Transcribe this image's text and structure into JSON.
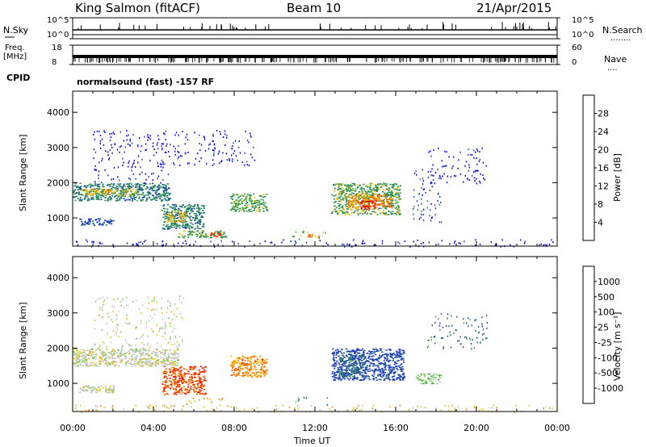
{
  "header": {
    "station": "King Salmon (fitACF)",
    "beam": "Beam 10",
    "date": "21/Apr/2015"
  },
  "strip_labels": {
    "nsky": "N.Sky",
    "nsearch": "N.Search",
    "nsearch_dots": "........",
    "freq_line1": "Freq.",
    "freq_line2": "[MHz]",
    "nave": "Nave",
    "nave_dots": "....",
    "cpid": "CPID",
    "cpid_text": "normalsound (fast) -157 RF",
    "nsky_ticks": [
      "10^5",
      "10^0"
    ],
    "nsearch_ticks": [
      "10^5",
      "10^0"
    ],
    "freq_ticks": [
      "18",
      "8"
    ],
    "nave_ticks": [
      "60",
      "0"
    ]
  },
  "colors": {
    "power": [
      "#0000ff",
      "#2040b0",
      "#208060",
      "#40a050",
      "#f0c000",
      "#f08000",
      "#ff4000",
      "#ff0000"
    ],
    "velocity": [
      "#2040c0",
      "#206080",
      "#40a040",
      "#80d060",
      "#c0c0c0",
      "#f0c000",
      "#f08000",
      "#f04000",
      "#ff0000"
    ]
  },
  "chart_data": [
    {
      "type": "heatmap",
      "panel": "power",
      "ylabel": "Slant Range [km]",
      "y_ticks": [
        1000,
        2000,
        3000,
        4000
      ],
      "ylim": [
        200,
        4600
      ],
      "xlim": [
        0,
        24
      ],
      "colorbar_label": "Power [dB]",
      "colorbar_ticks": [
        "4",
        "8",
        "12",
        "16",
        "20",
        "24",
        "28"
      ],
      "blobs": [
        {
          "t0": 0.0,
          "t1": 4.8,
          "r0": 1500,
          "r1": 2000,
          "c": 2
        },
        {
          "t0": 0.4,
          "t1": 3.2,
          "r0": 1650,
          "r1": 1850,
          "c": 4
        },
        {
          "t0": 0.3,
          "t1": 2.0,
          "r0": 800,
          "r1": 1000,
          "c": 1
        },
        {
          "t0": 4.4,
          "t1": 6.5,
          "r0": 700,
          "r1": 1400,
          "c": 2
        },
        {
          "t0": 4.6,
          "t1": 5.6,
          "r0": 900,
          "r1": 1200,
          "c": 4
        },
        {
          "t0": 5.2,
          "t1": 7.6,
          "r0": 450,
          "r1": 650,
          "c": 3
        },
        {
          "t0": 6.8,
          "t1": 7.4,
          "r0": 480,
          "r1": 600,
          "c": 6
        },
        {
          "t0": 7.8,
          "t1": 9.6,
          "r0": 1200,
          "r1": 1700,
          "c": 3
        },
        {
          "t0": 10.8,
          "t1": 12.5,
          "r0": 400,
          "r1": 650,
          "c": 3
        },
        {
          "t0": 11.6,
          "t1": 12.2,
          "r0": 450,
          "r1": 550,
          "c": 5
        },
        {
          "t0": 12.8,
          "t1": 16.2,
          "r0": 1100,
          "r1": 2000,
          "c": 3
        },
        {
          "t0": 13.6,
          "t1": 15.8,
          "r0": 1300,
          "r1": 1700,
          "c": 5
        },
        {
          "t0": 14.2,
          "t1": 15.0,
          "r0": 1250,
          "r1": 1500,
          "c": 7
        },
        {
          "t0": 16.8,
          "t1": 18.3,
          "r0": 900,
          "r1": 2400,
          "c": 1
        },
        {
          "t0": 1.0,
          "t1": 5.0,
          "r0": 2000,
          "r1": 3500,
          "c": 0
        },
        {
          "t0": 5.0,
          "t1": 9.0,
          "r0": 2500,
          "r1": 3500,
          "c": 0
        },
        {
          "t0": 17.5,
          "t1": 20.5,
          "r0": 2000,
          "r1": 3000,
          "c": 0
        },
        {
          "t0": 0.0,
          "t1": 24.0,
          "r0": 200,
          "r1": 400,
          "c": 0
        }
      ]
    },
    {
      "type": "heatmap",
      "panel": "velocity",
      "ylabel": "Slant Range [km]",
      "y_ticks": [
        1000,
        2000,
        3000,
        4000
      ],
      "ylim": [
        200,
        4600
      ],
      "xlim": [
        0,
        24
      ],
      "xlabel": "Time UT",
      "x_ticks": [
        "00:00",
        "04:00",
        "08:00",
        "12:00",
        "16:00",
        "20:00",
        "00:00"
      ],
      "colorbar_label": "Velocity [m s⁻¹]",
      "colorbar_ticks": [
        "1000",
        "500",
        "100",
        "25",
        "-25",
        "-100",
        "-500",
        "-1000"
      ],
      "blobs": [
        {
          "t0": 0.0,
          "t1": 5.2,
          "r0": 1500,
          "r1": 2000,
          "c": 4
        },
        {
          "t0": 0.3,
          "t1": 2.0,
          "r0": 750,
          "r1": 950,
          "c": 4
        },
        {
          "t0": 4.4,
          "t1": 6.6,
          "r0": 700,
          "r1": 1500,
          "c": 7
        },
        {
          "t0": 5.5,
          "t1": 7.8,
          "r0": 400,
          "r1": 600,
          "c": 6
        },
        {
          "t0": 7.8,
          "t1": 9.6,
          "r0": 1200,
          "r1": 1800,
          "c": 6
        },
        {
          "t0": 11.0,
          "t1": 12.6,
          "r0": 380,
          "r1": 620,
          "c": 2
        },
        {
          "t0": 12.8,
          "t1": 16.4,
          "r0": 1100,
          "r1": 2000,
          "c": 0
        },
        {
          "t0": 13.2,
          "t1": 14.4,
          "r0": 1200,
          "r1": 1800,
          "c": 1
        },
        {
          "t0": 17.0,
          "t1": 18.2,
          "r0": 1000,
          "r1": 1300,
          "c": 3
        },
        {
          "t0": 1.0,
          "t1": 5.5,
          "r0": 2000,
          "r1": 3500,
          "c": 4
        },
        {
          "t0": 17.5,
          "t1": 20.5,
          "r0": 2000,
          "r1": 3000,
          "c": 1
        },
        {
          "t0": 0.0,
          "t1": 24.0,
          "r0": 200,
          "r1": 400,
          "c": 5
        }
      ]
    }
  ]
}
